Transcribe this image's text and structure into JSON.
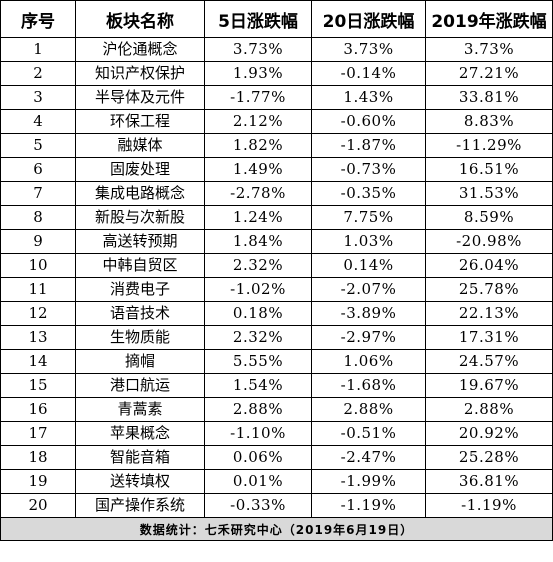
{
  "table": {
    "columns": [
      "序号",
      "板块名称",
      "5日涨跌幅",
      "20日涨跌幅",
      "2019年涨跌幅"
    ],
    "rows": [
      [
        "1",
        "沪伦通概念",
        "3.73%",
        "3.73%",
        "3.73%"
      ],
      [
        "2",
        "知识产权保护",
        "1.93%",
        "-0.14%",
        "27.21%"
      ],
      [
        "3",
        "半导体及元件",
        "-1.77%",
        "1.43%",
        "33.81%"
      ],
      [
        "4",
        "环保工程",
        "2.12%",
        "-0.60%",
        "8.83%"
      ],
      [
        "5",
        "融媒体",
        "1.82%",
        "-1.87%",
        "-11.29%"
      ],
      [
        "6",
        "固废处理",
        "1.49%",
        "-0.73%",
        "16.51%"
      ],
      [
        "7",
        "集成电路概念",
        "-2.78%",
        "-0.35%",
        "31.53%"
      ],
      [
        "8",
        "新股与次新股",
        "1.24%",
        "7.75%",
        "8.59%"
      ],
      [
        "9",
        "高送转预期",
        "1.84%",
        "1.03%",
        "-20.98%"
      ],
      [
        "10",
        "中韩自贸区",
        "2.32%",
        "0.14%",
        "26.04%"
      ],
      [
        "11",
        "消费电子",
        "-1.02%",
        "-2.07%",
        "25.78%"
      ],
      [
        "12",
        "语音技术",
        "0.18%",
        "-3.89%",
        "22.13%"
      ],
      [
        "13",
        "生物质能",
        "2.32%",
        "-2.97%",
        "17.31%"
      ],
      [
        "14",
        "摘帽",
        "5.55%",
        "1.06%",
        "24.57%"
      ],
      [
        "15",
        "港口航运",
        "1.54%",
        "-1.68%",
        "19.67%"
      ],
      [
        "16",
        "青蒿素",
        "2.88%",
        "2.88%",
        "2.88%"
      ],
      [
        "17",
        "苹果概念",
        "-1.10%",
        "-0.51%",
        "20.92%"
      ],
      [
        "18",
        "智能音箱",
        "0.06%",
        "-2.47%",
        "25.28%"
      ],
      [
        "19",
        "送转填权",
        "0.01%",
        "-1.99%",
        "36.81%"
      ],
      [
        "20",
        "国产操作系统",
        "-0.33%",
        "-1.19%",
        "-1.19%"
      ]
    ],
    "footer": "数据统计：七禾研究中心（2019年6月19日）"
  }
}
